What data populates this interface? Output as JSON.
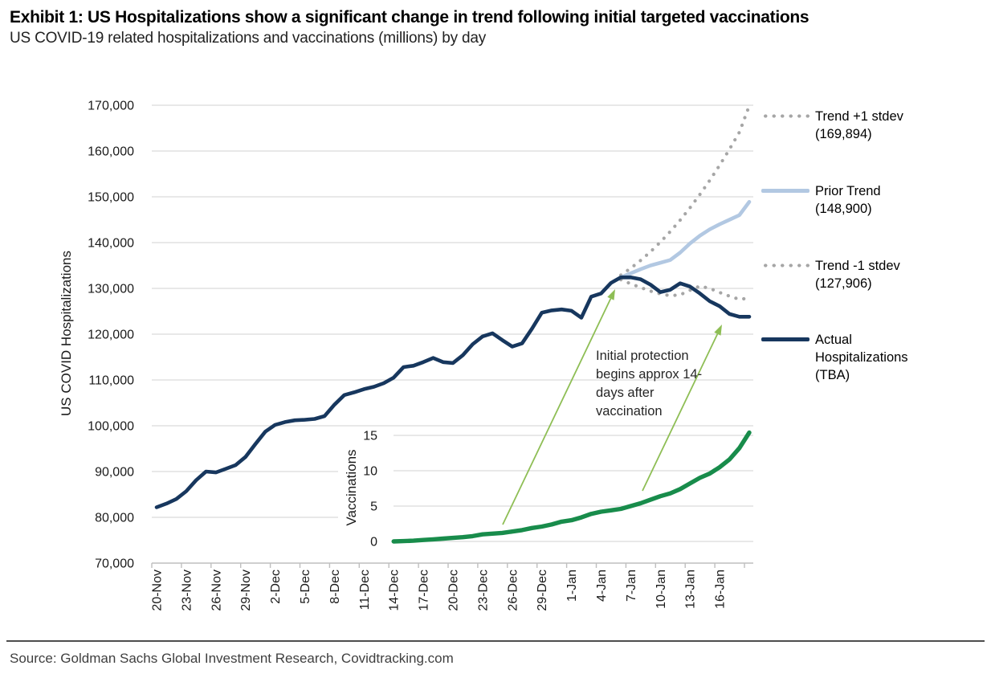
{
  "header": {
    "title": "Exhibit 1: US Hospitalizations show a significant change in trend following initial targeted vaccinations",
    "subtitle": "US COVID-19 related hospitalizations and vaccinations (millions) by day"
  },
  "annotation": {
    "text": "Initial protection begins approx 14-days after vaccination"
  },
  "source": {
    "text": "Source: Goldman Sachs Global Investment Research, Covidtracking.com"
  },
  "legend": [
    {
      "label": "Trend +1 stdev",
      "sublabel": "(169,894)",
      "style": "dotted",
      "color": "#A6A6A6"
    },
    {
      "label": "Prior Trend",
      "sublabel": "(148,900)",
      "style": "solid",
      "color": "#B2C8E2"
    },
    {
      "label": "Trend -1 stdev",
      "sublabel": "(127,906)",
      "style": "dotted",
      "color": "#A6A6A6"
    },
    {
      "label": "Actual Hospitalizations",
      "sublabel": "(TBA)",
      "style": "solid",
      "color": "#17375E"
    }
  ],
  "chart_data": {
    "type": "line",
    "title": "US COVID-19 related hospitalizations and vaccinations (millions) by day",
    "y_axis": {
      "label": "US COVID Hospitalizations",
      "min": 70000,
      "max": 170000,
      "step": 10000,
      "tick_labels": [
        "70,000",
        "80,000",
        "90,000",
        "100,000",
        "110,000",
        "120,000",
        "130,000",
        "140,000",
        "150,000",
        "160,000",
        "170,000"
      ]
    },
    "x_axis": {
      "start_date": "20-Nov",
      "end_date": "19-Jan",
      "tick_interval_days": 3,
      "tick_labels": [
        "20-Nov",
        "23-Nov",
        "26-Nov",
        "29-Nov",
        "2-Dec",
        "5-Dec",
        "8-Dec",
        "11-Dec",
        "14-Dec",
        "17-Dec",
        "20-Dec",
        "23-Dec",
        "26-Dec",
        "29-Dec",
        "1-Jan",
        "4-Jan",
        "7-Jan",
        "10-Jan",
        "13-Jan",
        "16-Jan"
      ]
    },
    "inset": {
      "label": "Vaccinations",
      "unit": "millions of doses",
      "ticks": [
        0,
        5,
        10,
        15
      ]
    },
    "units": "hospitalization values in thousands of patients",
    "series": [
      {
        "name": "Actual Hospitalizations (TBA)",
        "color": "#17375E",
        "style": "solid",
        "width": 4.6,
        "axis": "main",
        "start_index": 0,
        "values": [
          82.2,
          83.0,
          84.0,
          85.7,
          88.1,
          90.0,
          89.8,
          90.6,
          91.4,
          93.2,
          96.0,
          98.7,
          100.2,
          100.8,
          101.2,
          101.3,
          101.5,
          102.1,
          104.6,
          106.7,
          107.3,
          108.0,
          108.5,
          109.3,
          110.5,
          112.8,
          113.1,
          113.9,
          114.8,
          113.9,
          113.7,
          115.4,
          117.8,
          119.5,
          120.2,
          118.7,
          117.3,
          118.0,
          121.2,
          124.7,
          125.2,
          125.4,
          125.1,
          123.6,
          128.2,
          128.9,
          131.2,
          132.4,
          132.4,
          132.0,
          130.8,
          129.2,
          129.7,
          131.1,
          130.4,
          128.9,
          127.2,
          126.1,
          124.4,
          123.8,
          123.8
        ]
      },
      {
        "name": "Prior Trend (148,900)",
        "color": "#B2C8E2",
        "style": "solid",
        "width": 4.6,
        "axis": "main",
        "start_index": 47,
        "values": [
          132.4,
          133.3,
          134.2,
          135.0,
          135.6,
          136.2,
          137.8,
          139.8,
          141.5,
          142.9,
          144.0,
          145.0,
          146.0,
          148.9
        ]
      },
      {
        "name": "Trend +1 stdev (169,894)",
        "color": "#A6A6A6",
        "style": "dotted",
        "width": 4.2,
        "axis": "main",
        "start_index": 47,
        "values": [
          132.9,
          134.4,
          136.1,
          138.0,
          140.1,
          142.4,
          144.9,
          147.6,
          150.5,
          153.6,
          156.9,
          160.4,
          164.1,
          169.9
        ]
      },
      {
        "name": "Trend -1 stdev (127,906)",
        "color": "#A6A6A6",
        "style": "dotted",
        "width": 4.2,
        "axis": "main",
        "start_index": 47,
        "values": [
          131.9,
          131.0,
          130.2,
          129.4,
          128.8,
          128.4,
          128.6,
          129.6,
          130.5,
          130.0,
          129.1,
          128.3,
          127.6,
          127.9
        ]
      },
      {
        "name": "Vaccinations (millions)",
        "color": "#188C4B",
        "style": "solid",
        "width": 5.4,
        "axis": "inset",
        "start_index": 24,
        "values": [
          0,
          0.05,
          0.1,
          0.2,
          0.3,
          0.4,
          0.5,
          0.6,
          0.75,
          1.0,
          1.1,
          1.2,
          1.4,
          1.6,
          1.9,
          2.1,
          2.4,
          2.8,
          3.0,
          3.4,
          3.9,
          4.2,
          4.4,
          4.6,
          5.0,
          5.4,
          5.9,
          6.4,
          6.8,
          7.4,
          8.2,
          9.0,
          9.6,
          10.5,
          11.6,
          13.2,
          15.4
        ]
      }
    ],
    "arrows": [
      {
        "from": [
          626,
          653
        ],
        "to": [
          766,
          360
        ]
      },
      {
        "from": [
          800,
          611
        ],
        "to": [
          899,
          404
        ]
      }
    ],
    "colors": {
      "gridline": "#D9D9D9",
      "axis": "#BFBFBF",
      "arrow": "#8EBE55",
      "inset_background": "#FFFFFF"
    },
    "layout": {
      "grid": "horizontal",
      "legend_position": "right",
      "x_labels_rotated": -90
    }
  }
}
